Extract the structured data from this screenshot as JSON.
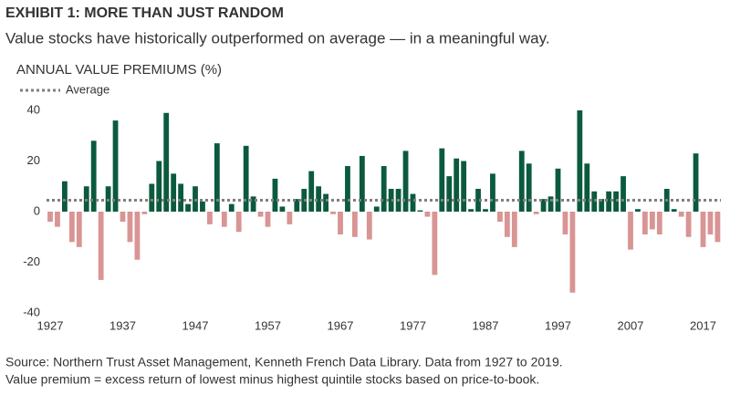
{
  "chart_data": {
    "type": "bar",
    "title": "EXHIBIT 1: MORE THAN JUST RANDOM",
    "subtitle": "Value stocks have historically outperformed on average — in a meaningful way.",
    "y_label": "ANNUAL VALUE PREMIUMS (%)",
    "categories": [
      "1927",
      null,
      null,
      null,
      null,
      null,
      null,
      null,
      null,
      null,
      "1937",
      null,
      null,
      null,
      null,
      null,
      null,
      null,
      null,
      null,
      "1947",
      null,
      null,
      null,
      null,
      null,
      null,
      null,
      null,
      null,
      "1957",
      null,
      null,
      null,
      null,
      null,
      null,
      null,
      null,
      null,
      "1967",
      null,
      null,
      null,
      null,
      null,
      null,
      null,
      null,
      null,
      "1977",
      null,
      null,
      null,
      null,
      null,
      null,
      null,
      null,
      null,
      "1987",
      null,
      null,
      null,
      null,
      null,
      null,
      null,
      null,
      null,
      "1997",
      null,
      null,
      null,
      null,
      null,
      null,
      null,
      null,
      null,
      "2007",
      null,
      null,
      null,
      null,
      null,
      null,
      null,
      null,
      null,
      "2017",
      null,
      null
    ],
    "values": [
      -4,
      -6,
      12,
      -12,
      -14,
      10,
      28,
      -27,
      10,
      36,
      -4,
      -12,
      -19,
      -1,
      11,
      20,
      39,
      15,
      11,
      3,
      10,
      4,
      -5,
      27,
      -6,
      3,
      -8,
      26,
      6,
      -2,
      -6,
      13,
      2,
      -5,
      5,
      9,
      16,
      10,
      7,
      -1,
      -9,
      18,
      -10,
      22,
      -11,
      2,
      18,
      9,
      9,
      24,
      7,
      0.5,
      -2,
      -25,
      25,
      14,
      21,
      20,
      1,
      9,
      1,
      15,
      -4,
      -10,
      -14,
      24,
      19,
      -1,
      5,
      6,
      17,
      -9,
      -32,
      40,
      19,
      8,
      5,
      8,
      8,
      14,
      -15,
      1,
      -9,
      -7,
      -9,
      9,
      1,
      -2,
      -10,
      23,
      -14,
      -9,
      -12
    ],
    "colors": {
      "positive": "#0b5a3e",
      "negative": "#d99494"
    },
    "average": {
      "name": "Average",
      "value": 4.5,
      "color": "#7f7f7f"
    },
    "ylim": [
      -40,
      40
    ],
    "yticks": [
      40,
      20,
      0,
      -20,
      -40
    ],
    "grid": false,
    "notes": [
      "Source: Northern Trust Asset Management, Kenneth French Data Library. Data from 1927 to 2019.",
      "Value premium = excess return of lowest minus highest quintile stocks based on price-to-book."
    ]
  }
}
